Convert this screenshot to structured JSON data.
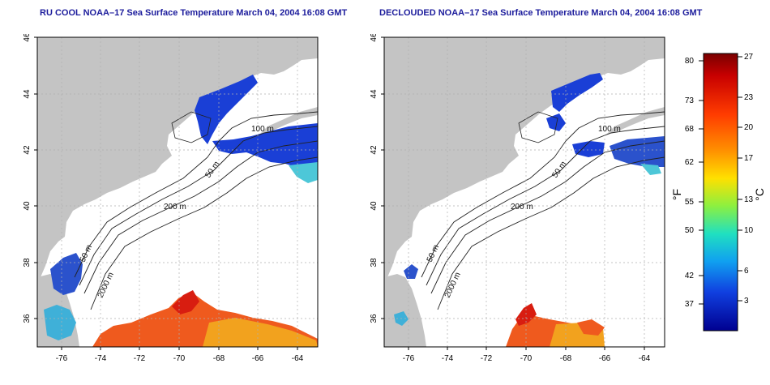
{
  "left_panel": {
    "title": "RU COOL NOAA–17 Sea Surface Temperature March 04, 2004 16:08 GMT",
    "x_ticks": [
      "-76",
      "-74",
      "-72",
      "-70",
      "-68",
      "-66",
      "-64"
    ],
    "y_ticks": [
      "46",
      "44",
      "42",
      "40",
      "38",
      "36"
    ],
    "contour_labels": [
      "100 m",
      "50 m",
      "200 m",
      "50 m",
      "2000 m"
    ]
  },
  "right_panel": {
    "title": "DECLOUDED NOAA–17 Sea Surface Temperature March 04, 2004 16:08 GMT",
    "x_ticks": [
      "-76",
      "-74",
      "-72",
      "-70",
      "-68",
      "-66",
      "-64"
    ],
    "y_ticks": [
      "46",
      "44",
      "42",
      "40",
      "38",
      "36"
    ],
    "contour_labels": [
      "100 m",
      "50 m",
      "200 m",
      "50 m",
      "2000 m"
    ]
  },
  "colorbar": {
    "fahrenheit_label": "°F",
    "celsius_label": "°C",
    "fahrenheit_ticks": [
      "80",
      "73",
      "68",
      "62",
      "55",
      "50",
      "42",
      "37"
    ],
    "celsius_ticks": [
      "27",
      "23",
      "20",
      "17",
      "13",
      "10",
      "6",
      "3"
    ]
  },
  "colors": {
    "land": "#c4c4c4",
    "ocean": "#ffffff",
    "title": "#1c1c9c",
    "cold": "#1a3fd6",
    "warm": "#ef5a1e"
  }
}
